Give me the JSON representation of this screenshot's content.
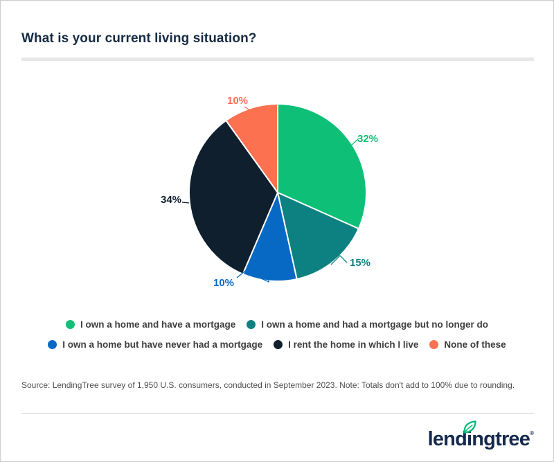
{
  "title": "What is your current living situation?",
  "chart_data": {
    "type": "pie",
    "title": "What is your current living situation?",
    "categories": [
      "I own a home and have a mortgage",
      "I own a home and had a mortgage but no longer do",
      "I own a home but have never had a mortgage",
      "I rent the home in which I live",
      "None of these"
    ],
    "values": [
      32,
      15,
      10,
      34,
      10
    ],
    "unit": "%",
    "data_labels": [
      "32%",
      "15%",
      "10%",
      "34%",
      "10%"
    ],
    "colors": [
      "#0ec077",
      "#0d8181",
      "#0869c4",
      "#101f2e",
      "#fc7150"
    ],
    "start_angle_deg": 0,
    "direction": "clockwise",
    "legend_position": "bottom",
    "note": "Totals don't add to 100% due to rounding"
  },
  "legend": {
    "rows": [
      {
        "items": [
          {
            "label": "I own a home and have a mortgage",
            "color": "#0ec077"
          },
          {
            "label": "I own a home and had a mortgage but no longer do",
            "color": "#0d8181"
          }
        ]
      },
      {
        "items": [
          {
            "label": "I own a home but have never had a mortgage",
            "color": "#0869c4"
          },
          {
            "label": "I rent the home in which I live",
            "color": "#101f2e"
          },
          {
            "label": "None of these",
            "color": "#fc7150"
          }
        ]
      }
    ]
  },
  "source_note": "Source: LendingTree survey of 1,950 U.S. consumers, conducted in September 2023. Note: Totals don't add to 100% due to rounding.",
  "footer": {
    "logo_text": "lendingtree",
    "registered_mark": "®",
    "leaf_color": "#00b876",
    "navy": "#14294b"
  }
}
